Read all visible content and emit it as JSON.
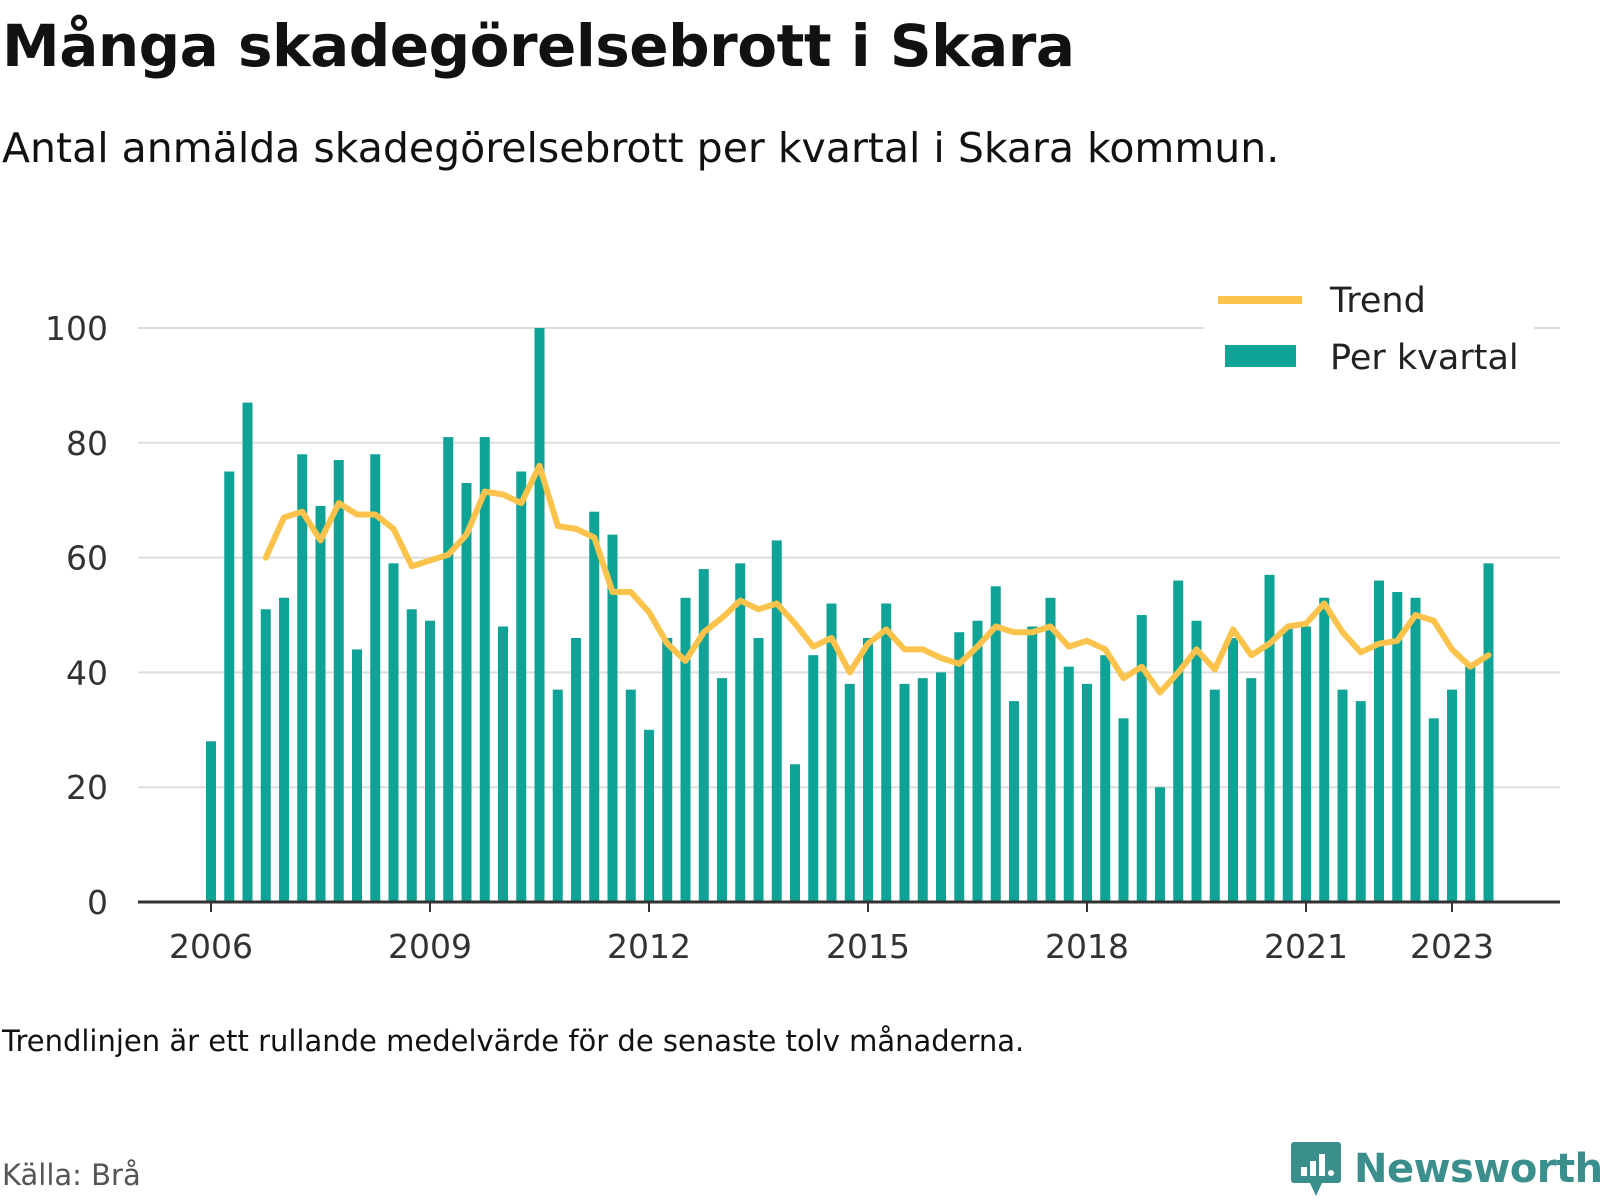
{
  "header": {
    "title": "Många skadegörelsebrott i Skara",
    "subtitle": "Antal anmälda skadegörelsebrott per kvartal i Skara kommun."
  },
  "footer": {
    "note": "Trendlinjen är ett rullande medelvärde för de senaste tolv månaderna.",
    "source": "Källa: Brå",
    "brand": "Newsworthy",
    "brand_icon": "bar-chart-speech-bubble-icon"
  },
  "colors": {
    "bars": "#0ea396",
    "trend": "#fbc34c",
    "grid": "#dddddd",
    "axis": "#333333",
    "brand": "#3a8f8c"
  },
  "chart_data": {
    "type": "bar",
    "x_start": "2006 Q1",
    "x_end": "2023 Q3",
    "x_ticks": [
      "2006",
      "2009",
      "2012",
      "2015",
      "2018",
      "2021",
      "2023"
    ],
    "y_ticks": [
      "0",
      "20",
      "40",
      "60",
      "80",
      "100"
    ],
    "ylim": [
      0,
      100
    ],
    "grid": "horizontal",
    "legend": {
      "placement": "top-right",
      "entries": [
        "Trend",
        "Per kvartal"
      ]
    },
    "series": [
      {
        "name": "Per kvartal",
        "kind": "bar",
        "values": [
          28,
          75,
          87,
          51,
          53,
          78,
          69,
          77,
          44,
          78,
          59,
          51,
          49,
          81,
          73,
          81,
          48,
          75,
          100,
          37,
          46,
          68,
          64,
          37,
          30,
          46,
          53,
          58,
          39,
          59,
          46,
          63,
          24,
          43,
          52,
          38,
          46,
          52,
          38,
          39,
          40,
          47,
          49,
          55,
          35,
          48,
          53,
          41,
          38,
          43,
          32,
          50,
          20,
          56,
          49,
          37,
          46,
          39,
          57,
          48,
          48,
          53,
          37,
          35,
          56,
          54,
          53,
          32,
          37,
          41,
          59
        ]
      },
      {
        "name": "Trend",
        "kind": "line",
        "start_index": 3,
        "values": [
          60,
          67,
          68,
          63,
          69.5,
          67.5,
          67.5,
          65,
          58.5,
          59.5,
          60.5,
          64,
          71.5,
          71,
          69.5,
          76,
          65.5,
          65,
          63.5,
          54,
          54,
          50.5,
          45,
          42,
          47,
          49.5,
          52.5,
          51,
          52,
          48.5,
          44.5,
          46,
          40,
          45,
          47.5,
          44,
          44,
          42.5,
          41.5,
          44.5,
          48,
          47,
          47,
          48,
          44.5,
          45.5,
          44,
          39,
          41,
          36.5,
          40,
          44,
          40.5,
          47.5,
          43,
          45,
          48,
          48.5,
          52,
          47,
          43.5,
          45,
          45.5,
          50,
          49,
          44,
          41,
          43
        ]
      }
    ]
  }
}
